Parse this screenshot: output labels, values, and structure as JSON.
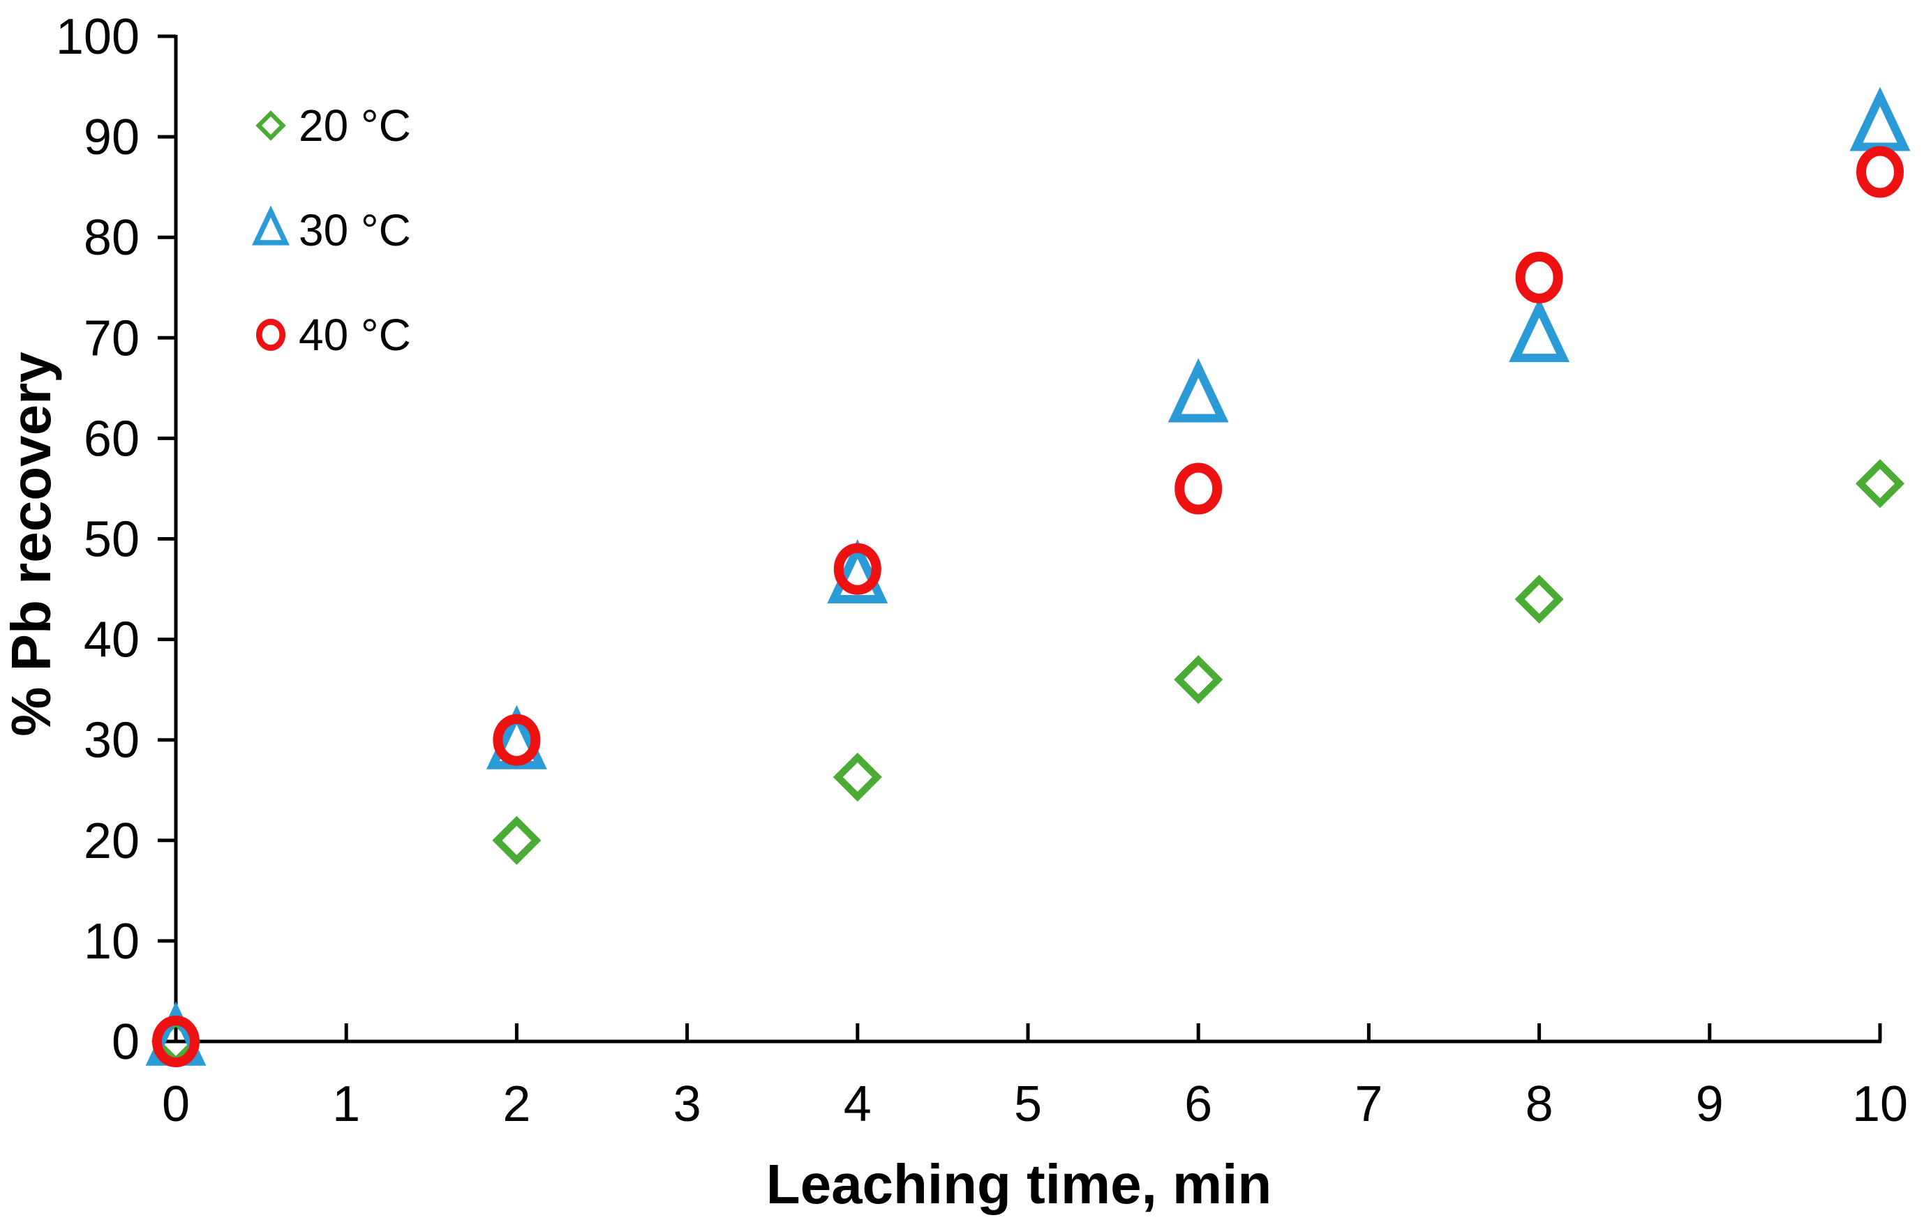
{
  "chart_data": {
    "type": "scatter",
    "title": "",
    "xlabel": "Leaching time, min",
    "ylabel": "% Pb recovery",
    "xlim": [
      0,
      10
    ],
    "ylim": [
      0,
      100
    ],
    "xticks": [
      0,
      1,
      2,
      3,
      4,
      5,
      6,
      7,
      8,
      9,
      10
    ],
    "yticks": [
      0,
      10,
      20,
      30,
      40,
      50,
      60,
      70,
      80,
      90,
      100
    ],
    "legend_position": "top-left",
    "grid": false,
    "series": [
      {
        "name": "20 °C",
        "marker": "diamond",
        "color": "#4aab35",
        "x": [
          0,
          2,
          4,
          6,
          8,
          10
        ],
        "y": [
          0,
          20,
          26.3,
          36,
          44,
          55.5
        ]
      },
      {
        "name": "30 °C",
        "marker": "triangle",
        "color": "#2b9bd8",
        "x": [
          0,
          2,
          4,
          6,
          8,
          10
        ],
        "y": [
          0,
          29.5,
          46,
          64,
          70,
          91
        ]
      },
      {
        "name": "40 °C",
        "marker": "circle",
        "color": "#ee1111",
        "x": [
          0,
          2,
          4,
          6,
          8,
          10
        ],
        "y": [
          0,
          30,
          47,
          55,
          76,
          86.5
        ]
      }
    ]
  }
}
